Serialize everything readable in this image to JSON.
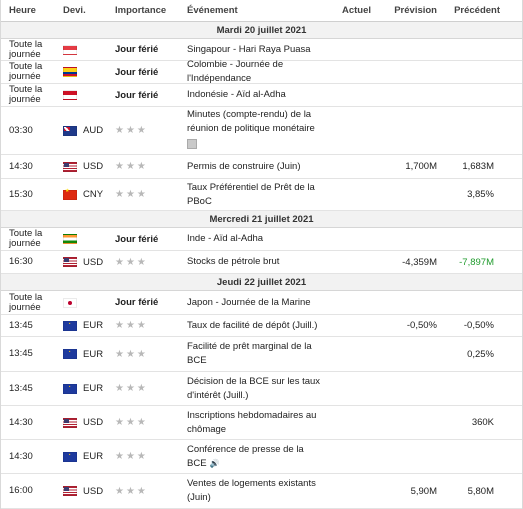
{
  "header": {
    "time": "Heure",
    "currency": "Devi.",
    "importance": "Importance",
    "event": "Événement",
    "actual": "Actuel",
    "forecast": "Prévision",
    "previous": "Précédent"
  },
  "days": [
    {
      "title": "Mardi 20 juillet 2021",
      "rows": [
        {
          "time": "Toute la journée",
          "flag": "sg",
          "currency": "",
          "importance": "Jour férié",
          "event": "Singapour - Hari Raya Puasa",
          "actual": "",
          "forecast": "",
          "previous": "",
          "h": 22
        },
        {
          "time": "Toute la journée",
          "flag": "co",
          "currency": "",
          "importance": "Jour férié",
          "event": "Colombie - Journée de l'Indépendance",
          "actual": "",
          "forecast": "",
          "previous": "",
          "h": 23
        },
        {
          "time": "Toute la journée",
          "flag": "id",
          "currency": "",
          "importance": "Jour férié",
          "event": "Indonésie - Aïd al-Adha",
          "actual": "",
          "forecast": "",
          "previous": "",
          "h": 23
        },
        {
          "time": "03:30",
          "flag": "au",
          "currency": "AUD",
          "importance": "",
          "stars": "★★★",
          "event": "Minutes (compte-rendu) de la réunion de politique monétaire",
          "doc": true,
          "actual": "",
          "forecast": "",
          "previous": "",
          "h": 48
        },
        {
          "time": "14:30",
          "flag": "us",
          "currency": "USD",
          "importance": "",
          "stars": "★★★",
          "event": "Permis de construire (Juin)",
          "actual": "",
          "forecast": "1,700M",
          "previous": "1,683M",
          "h": 24
        },
        {
          "time": "15:30",
          "flag": "cn",
          "currency": "CNY",
          "importance": "",
          "stars": "★★★",
          "event": "Taux Préférentiel de Prêt de la PBoC",
          "actual": "",
          "forecast": "",
          "previous": "3,85%",
          "h": 32
        }
      ]
    },
    {
      "title": "Mercredi 21 juillet 2021",
      "rows": [
        {
          "time": "Toute la journée",
          "flag": "in",
          "currency": "",
          "importance": "Jour férié",
          "event": "Inde - Aïd al-Adha",
          "actual": "",
          "forecast": "",
          "previous": "",
          "h": 23
        },
        {
          "time": "16:30",
          "flag": "us",
          "currency": "USD",
          "importance": "",
          "stars": "★★★",
          "event": "Stocks de pétrole brut",
          "actual": "",
          "forecast": "-4,359M",
          "previous": "-7,897M",
          "prevGreen": true,
          "h": 23
        }
      ]
    },
    {
      "title": "Jeudi 22 juillet 2021",
      "rows": [
        {
          "time": "Toute la journée",
          "flag": "jp",
          "currency": "",
          "importance": "Jour férié",
          "event": "Japon - Journée de la Marine",
          "actual": "",
          "forecast": "",
          "previous": "",
          "h": 24
        },
        {
          "time": "13:45",
          "flag": "eu",
          "currency": "EUR",
          "importance": "",
          "stars": "★★★",
          "event": "Taux de facilité de dépôt (Juill.)",
          "actual": "",
          "forecast": "-0,50%",
          "previous": "-0,50%",
          "h": 22
        },
        {
          "time": "13:45",
          "flag": "eu",
          "currency": "EUR",
          "importance": "",
          "stars": "★★★",
          "event": "Facilité de prêt marginal de la BCE",
          "actual": "",
          "forecast": "",
          "previous": "0,25%",
          "h": 35
        },
        {
          "time": "13:45",
          "flag": "eu",
          "currency": "EUR",
          "importance": "",
          "stars": "★★★",
          "event": "Décision de la BCE sur les taux d'intérêt (Juill.)",
          "actual": "",
          "forecast": "",
          "previous": "",
          "h": 34
        },
        {
          "time": "14:30",
          "flag": "us",
          "currency": "USD",
          "importance": "",
          "stars": "★★★",
          "event": "Inscriptions hebdomadaires au chômage",
          "actual": "",
          "forecast": "",
          "previous": "360K",
          "h": 34
        },
        {
          "time": "14:30",
          "flag": "eu",
          "currency": "EUR",
          "importance": "",
          "stars": "★★★",
          "event": "Conférence de presse de la BCE",
          "speaker": true,
          "actual": "",
          "forecast": "",
          "previous": "",
          "h": 34
        },
        {
          "time": "16:00",
          "flag": "us",
          "currency": "USD",
          "importance": "",
          "stars": "★★★",
          "event": "Ventes de logements existants (Juin)",
          "actual": "",
          "forecast": "5,90M",
          "previous": "5,80M",
          "h": 35
        }
      ]
    }
  ]
}
